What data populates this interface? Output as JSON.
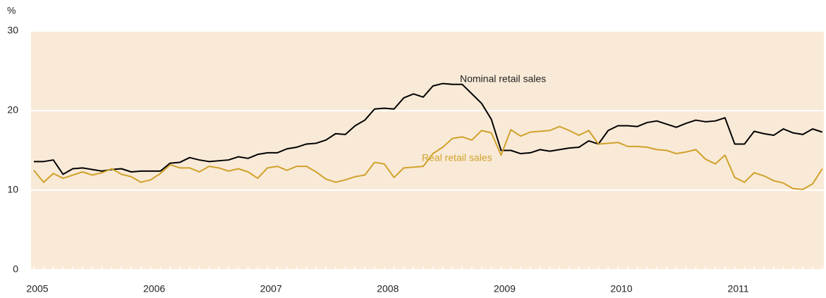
{
  "chart_data": {
    "type": "line",
    "y_label": "%",
    "categories": [
      "2005",
      null,
      null,
      null,
      null,
      null,
      null,
      null,
      null,
      null,
      null,
      null,
      "2006",
      null,
      null,
      null,
      null,
      null,
      null,
      null,
      null,
      null,
      null,
      null,
      "2007",
      null,
      null,
      null,
      null,
      null,
      null,
      null,
      null,
      null,
      null,
      null,
      "2008",
      null,
      null,
      null,
      null,
      null,
      null,
      null,
      null,
      null,
      null,
      null,
      "2009",
      null,
      null,
      null,
      null,
      null,
      null,
      null,
      null,
      null,
      null,
      null,
      "2010",
      null,
      null,
      null,
      null,
      null,
      null,
      null,
      null,
      null,
      null,
      null,
      "2011",
      null,
      null,
      null,
      null,
      null,
      null,
      null,
      null,
      null
    ],
    "series": [
      {
        "name": "Nominal retail sales",
        "color": "#000000",
        "values": [
          13.6,
          13.6,
          13.8,
          12.0,
          12.7,
          12.8,
          12.6,
          12.4,
          12.6,
          12.7,
          12.3,
          12.4,
          12.4,
          12.4,
          13.4,
          13.5,
          14.1,
          13.8,
          13.6,
          13.7,
          13.8,
          14.2,
          14.0,
          14.5,
          14.7,
          14.7,
          15.2,
          15.4,
          15.8,
          15.9,
          16.3,
          17.1,
          17.0,
          18.1,
          18.8,
          20.2,
          20.3,
          20.2,
          21.6,
          22.1,
          21.7,
          23.1,
          23.4,
          23.3,
          23.3,
          22.1,
          20.9,
          18.9,
          15.0,
          15.0,
          14.6,
          14.7,
          15.1,
          14.9,
          15.1,
          15.3,
          15.4,
          16.2,
          15.8,
          17.5,
          18.1,
          18.1,
          18.0,
          18.5,
          18.7,
          18.3,
          17.9,
          18.4,
          18.8,
          18.6,
          18.7,
          19.1,
          15.8,
          15.8,
          17.4,
          17.1,
          16.9,
          17.7,
          17.2,
          17.0,
          17.7,
          17.3
        ]
      },
      {
        "name": "Real retail sales",
        "color": "#d0a12a",
        "values": [
          12.5,
          11.0,
          12.1,
          11.5,
          11.9,
          12.3,
          11.9,
          12.2,
          12.7,
          12.0,
          11.7,
          11.0,
          11.3,
          12.1,
          13.2,
          12.8,
          12.8,
          12.3,
          13.0,
          12.8,
          12.4,
          12.7,
          12.3,
          11.5,
          12.8,
          13.0,
          12.5,
          13.0,
          13.0,
          12.3,
          11.4,
          11.0,
          11.3,
          11.7,
          11.9,
          13.5,
          13.3,
          11.6,
          12.8,
          12.9,
          13.0,
          14.6,
          15.4,
          16.5,
          16.7,
          16.3,
          17.5,
          17.2,
          14.4,
          17.6,
          16.8,
          17.3,
          17.4,
          17.5,
          18.0,
          17.5,
          16.9,
          17.5,
          15.8,
          15.9,
          16.0,
          15.5,
          15.5,
          15.4,
          15.1,
          15.0,
          14.6,
          14.8,
          15.1,
          13.9,
          13.3,
          14.4,
          11.6,
          11.0,
          12.2,
          11.8,
          11.2,
          10.9,
          10.2,
          10.1,
          10.8,
          12.7
        ]
      }
    ],
    "ylim": [
      0,
      30
    ],
    "yticks": [
      0,
      10,
      20,
      30
    ],
    "grid": true
  }
}
